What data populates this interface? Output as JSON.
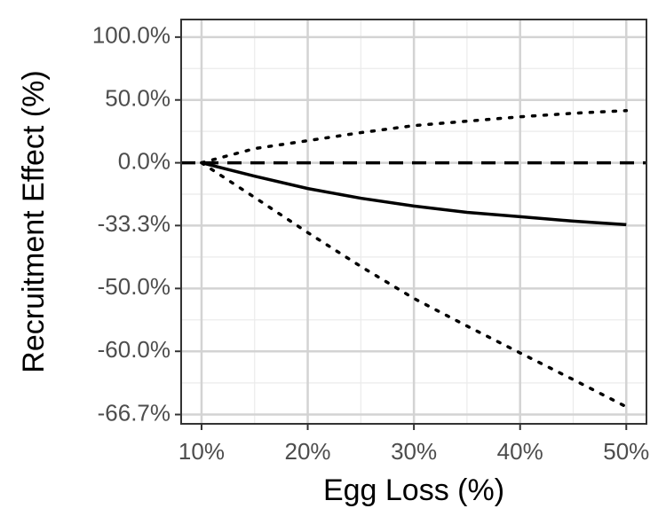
{
  "chart_data": {
    "type": "line",
    "x_label": "Egg Loss (%)",
    "y_label": "Recruitment Effect (%)",
    "y_scale": "ratio-symmetric",
    "x": [
      10,
      15,
      20,
      25,
      30,
      35,
      40,
      45,
      50
    ],
    "series": [
      {
        "color": "#000000",
        "style": "solid",
        "values": [
          0,
          -9.6,
          -17,
          -22,
          -25.6,
          -28.3,
          -30,
          -31.7,
          -33
        ]
      },
      {
        "color": "#000000",
        "style": "dotted",
        "values": [
          0,
          11.3,
          17.6,
          24,
          29.6,
          33.1,
          36.6,
          39.4,
          41.5
        ]
      },
      {
        "color": "#000000",
        "style": "dotted",
        "values": [
          0,
          -21.6,
          -35.7,
          -45.2,
          -51.9,
          -56.5,
          -60.2,
          -63.3,
          -66
        ]
      }
    ],
    "hline": 0,
    "xlim": [
      8.08,
      51.9
    ],
    "xticks": [
      {
        "value": 10,
        "label": "10%"
      },
      {
        "value": 20,
        "label": "20%"
      },
      {
        "value": 30,
        "label": "30%"
      },
      {
        "value": 40,
        "label": "40%"
      },
      {
        "value": 50,
        "label": "50%"
      }
    ],
    "ylim": [
      -67.5,
      114
    ],
    "yticks": [
      {
        "value": 100,
        "label": "100.0%"
      },
      {
        "value": 50,
        "label": "50.0%"
      },
      {
        "value": 0,
        "label": "0.0%"
      },
      {
        "value": -33.3,
        "label": "-33.3%"
      },
      {
        "value": -50,
        "label": "-50.0%"
      },
      {
        "value": -60,
        "label": "-60.0%"
      },
      {
        "value": -66.7,
        "label": "-66.7%"
      }
    ],
    "grid": true
  }
}
